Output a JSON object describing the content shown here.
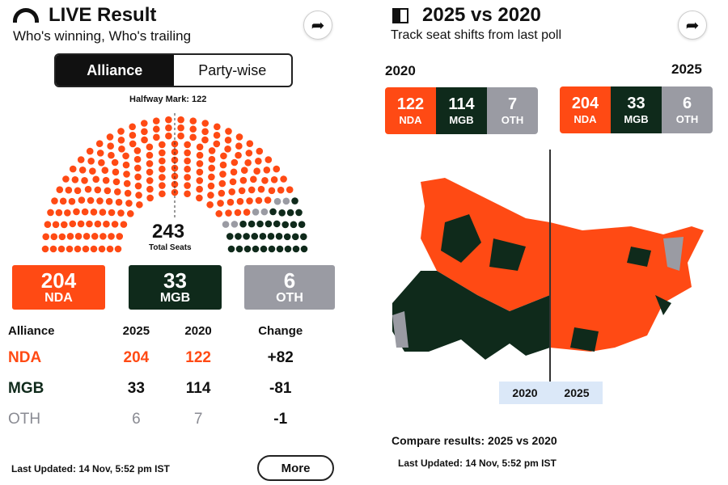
{
  "live": {
    "title": "LIVE Result",
    "subtitle": "Who's winning, Who's trailing",
    "tabs": [
      "Alliance",
      "Party-wise"
    ],
    "halfway": "Halfway Mark: 122",
    "total": "243",
    "total_label": "Total Seats",
    "cards": [
      {
        "value": "204",
        "label": "NDA"
      },
      {
        "value": "33",
        "label": "MGB"
      },
      {
        "value": "6",
        "label": "OTH"
      }
    ],
    "seats": {
      "NDA": 204,
      "OTH": 6,
      "MGB": 33
    },
    "table": {
      "headers": [
        "Alliance",
        "2025",
        "2020",
        "Change"
      ],
      "rows": [
        [
          "NDA",
          "204",
          "122",
          "+82"
        ],
        [
          "MGB",
          "33",
          "114",
          "-81"
        ],
        [
          "OTH",
          "6",
          "7",
          "-1"
        ]
      ]
    },
    "updated": "Last Updated: 14 Nov, 5:52 pm IST",
    "more": "More"
  },
  "compare": {
    "title": "2025 vs 2020",
    "subtitle": "Track seat shifts from last poll",
    "y2020": {
      "label": "2020",
      "items": [
        {
          "value": "122",
          "label": "NDA"
        },
        {
          "value": "114",
          "label": "MGB"
        },
        {
          "value": "7",
          "label": "OTH"
        }
      ]
    },
    "y2025": {
      "label": "2025",
      "items": [
        {
          "value": "204",
          "label": "NDA"
        },
        {
          "value": "33",
          "label": "MGB"
        },
        {
          "value": "6",
          "label": "OTH"
        }
      ]
    },
    "slider_labels": [
      "2020",
      "2025"
    ],
    "footer": "Compare results: 2025 vs 2020",
    "updated": "Last Updated: 14 Nov, 5:52 pm IST"
  },
  "colors": {
    "nda": "#ff4a14",
    "mgb": "#0f2a1b",
    "oth": "#9a9ba3"
  }
}
